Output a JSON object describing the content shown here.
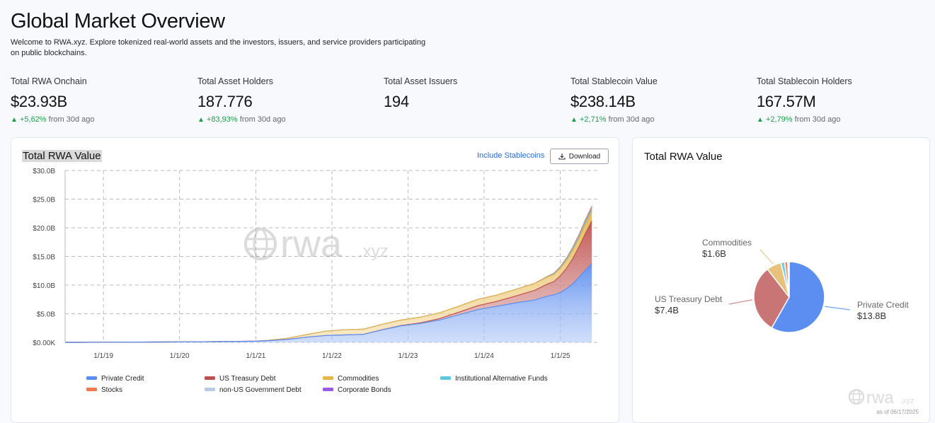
{
  "header": {
    "title": "Global Market Overview",
    "intro": "Welcome to RWA.xyz. Explore tokenized real-world assets and the investors, issuers, and service providers participating on public blockchains."
  },
  "stats": [
    {
      "label": "Total RWA Onchain",
      "value": "$23.93B",
      "change": "+5,62%",
      "suffix": "from 30d ago"
    },
    {
      "label": "Total Asset Holders",
      "value": "187.776",
      "change": "+83,93%",
      "suffix": "from 30d ago"
    },
    {
      "label": "Total Asset Issuers",
      "value": "194",
      "change": "",
      "suffix": ""
    },
    {
      "label": "Total Stablecoin Value",
      "value": "$238.14B",
      "change": "+2,71%",
      "suffix": "from 30d ago"
    },
    {
      "label": "Total Stablecoin Holders",
      "value": "167.57M",
      "change": "+2,79%",
      "suffix": "from 30d ago"
    }
  ],
  "left_card": {
    "title": "Total RWA Value",
    "include_link": "Include Stablecoins",
    "download_label": "Download",
    "watermark_main": "rwa",
    "watermark_sub": ".xyz"
  },
  "right_card": {
    "title": "Total RWA Value",
    "watermark_main": "rwa",
    "watermark_sub": ".xyz",
    "as_of": "as of 06/17/2025"
  },
  "colors": {
    "private_credit": "#5b8ef0",
    "us_treasury": "#c0504d",
    "commodities": "#e6b64a",
    "inst_alt": "#5ec8e0",
    "stocks": "#f07a4a",
    "non_us_gov": "#b8cbe6",
    "corp_bonds": "#9b59e6",
    "positive": "#1a9e47"
  },
  "chart_data": [
    {
      "type": "area",
      "stacked": true,
      "title": "Total RWA Value",
      "ylim": [
        0,
        30
      ],
      "y_unit": "B USD",
      "yticks": [
        "$0.00K",
        "$5.0B",
        "$10.0B",
        "$15.0B",
        "$20.0B",
        "$25.0B",
        "$30.0B"
      ],
      "xticks": [
        "1/1/19",
        "1/1/20",
        "1/1/21",
        "1/1/22",
        "1/1/23",
        "1/1/24",
        "1/1/25"
      ],
      "grid": true,
      "legend_position": "bottom",
      "x": [
        "2018-07-01",
        "2019-01-01",
        "2019-07-01",
        "2020-01-01",
        "2020-07-01",
        "2021-01-01",
        "2021-03-01",
        "2021-06-01",
        "2021-09-01",
        "2021-12-01",
        "2022-03-01",
        "2022-06-01",
        "2022-09-01",
        "2022-12-01",
        "2023-03-01",
        "2023-06-01",
        "2023-09-01",
        "2023-12-01",
        "2024-03-01",
        "2024-06-01",
        "2024-09-01",
        "2024-11-01",
        "2024-12-01",
        "2025-01-01",
        "2025-02-01",
        "2025-03-01",
        "2025-04-01",
        "2025-05-01",
        "2025-06-01"
      ],
      "series": [
        {
          "name": "Private Credit",
          "values": [
            0.0,
            0.02,
            0.05,
            0.08,
            0.12,
            0.2,
            0.3,
            0.5,
            0.9,
            1.2,
            1.3,
            1.4,
            2.2,
            2.9,
            3.3,
            3.9,
            4.8,
            5.7,
            6.3,
            6.9,
            7.4,
            8.1,
            8.3,
            8.7,
            9.4,
            10.2,
            11.4,
            12.6,
            13.8
          ]
        },
        {
          "name": "US Treasury Debt",
          "values": [
            0.0,
            0.0,
            0.0,
            0.0,
            0.0,
            0.0,
            0.0,
            0.0,
            0.0,
            0.0,
            0.0,
            0.0,
            0.02,
            0.05,
            0.1,
            0.25,
            0.45,
            0.7,
            0.85,
            1.2,
            1.7,
            2.1,
            2.3,
            2.9,
            3.6,
            4.4,
            5.3,
            6.4,
            7.4
          ]
        },
        {
          "name": "Commodities",
          "values": [
            0.0,
            0.0,
            0.0,
            0.0,
            0.0,
            0.0,
            0.05,
            0.2,
            0.45,
            0.75,
            0.9,
            0.9,
            0.95,
            0.95,
            1.0,
            1.0,
            1.05,
            1.1,
            1.1,
            1.15,
            1.2,
            1.2,
            1.25,
            1.3,
            1.35,
            1.4,
            1.45,
            1.55,
            1.6
          ]
        },
        {
          "name": "Institutional Alternative Funds",
          "values": [
            0,
            0,
            0,
            0,
            0,
            0,
            0,
            0,
            0,
            0,
            0,
            0,
            0,
            0,
            0,
            0,
            0,
            0,
            0,
            0,
            0,
            0.05,
            0.1,
            0.15,
            0.2,
            0.25,
            0.3,
            0.35,
            0.4
          ]
        },
        {
          "name": "Stocks",
          "values": [
            0,
            0,
            0,
            0,
            0,
            0,
            0,
            0,
            0,
            0,
            0,
            0,
            0,
            0,
            0,
            0,
            0,
            0,
            0,
            0,
            0.02,
            0.05,
            0.08,
            0.1,
            0.15,
            0.2,
            0.25,
            0.3,
            0.35
          ]
        },
        {
          "name": "non-US Government Debt",
          "values": [
            0,
            0,
            0,
            0,
            0,
            0,
            0,
            0,
            0,
            0,
            0,
            0,
            0,
            0,
            0,
            0,
            0,
            0,
            0,
            0,
            0,
            0.02,
            0.03,
            0.05,
            0.07,
            0.08,
            0.1,
            0.12,
            0.15
          ]
        },
        {
          "name": "Corporate Bonds",
          "values": [
            0,
            0,
            0,
            0,
            0,
            0,
            0,
            0,
            0,
            0,
            0,
            0,
            0,
            0,
            0,
            0,
            0,
            0,
            0,
            0,
            0,
            0.01,
            0.02,
            0.03,
            0.04,
            0.05,
            0.06,
            0.08,
            0.1
          ]
        }
      ]
    },
    {
      "type": "pie",
      "title": "Total RWA Value",
      "slices": [
        {
          "label": "Private Credit",
          "display": "$13.8B",
          "value": 13.8,
          "color": "#5b8ef0"
        },
        {
          "label": "US Treasury Debt",
          "display": "$7.4B",
          "value": 7.4,
          "color": "#c97575"
        },
        {
          "label": "Commodities",
          "display": "$1.6B",
          "value": 1.6,
          "color": "#e8c27a"
        },
        {
          "label": "",
          "display": "",
          "value": 0.4,
          "color": "#6ed0e6"
        },
        {
          "label": "",
          "display": "",
          "value": 0.35,
          "color": "#f08f70"
        },
        {
          "label": "",
          "display": "",
          "value": 0.15,
          "color": "#b8cbe6"
        }
      ]
    }
  ]
}
